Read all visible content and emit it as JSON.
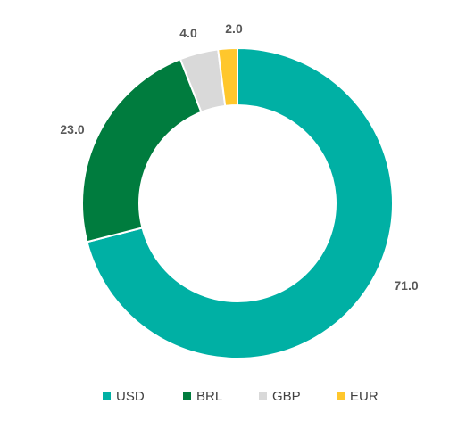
{
  "chart_data": {
    "type": "pie",
    "title": "",
    "categories": [
      "USD",
      "BRL",
      "GBP",
      "EUR"
    ],
    "values": [
      71.0,
      23.0,
      4.0,
      2.0
    ],
    "value_labels": [
      "71.0",
      "23.0",
      "4.0",
      "2.0"
    ],
    "colors": [
      "#00b0a4",
      "#007c3e",
      "#d9d9d9",
      "#ffc72c"
    ],
    "donut": true,
    "legend_position": "bottom"
  }
}
